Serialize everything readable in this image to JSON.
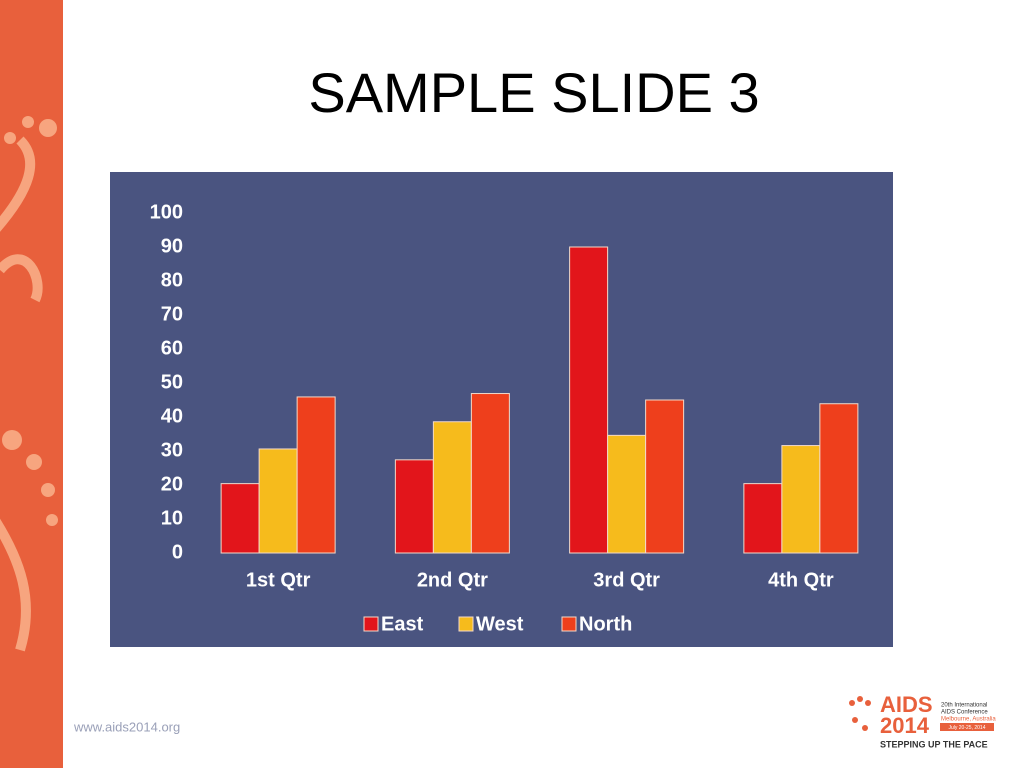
{
  "slide": {
    "title": "SAMPLE SLIDE 3",
    "footer": "www.aids2014.org",
    "logo": {
      "name": "AIDS",
      "year": "2014",
      "line1": "20th International",
      "line2": "AIDS Conference",
      "line3": "Melbourne, Australia",
      "dates": "July 20-25, 2014",
      "tagline": "STEPPING UP THE PACE"
    }
  },
  "chart_data": {
    "type": "bar",
    "categories": [
      "1st Qtr",
      "2nd Qtr",
      "3rd Qtr",
      "4th Qtr"
    ],
    "series": [
      {
        "name": "East",
        "color": "#e2151b",
        "values": [
          20.4,
          27.4,
          90,
          20.4
        ]
      },
      {
        "name": "West",
        "color": "#f6bb1c",
        "values": [
          30.6,
          38.6,
          34.6,
          31.6
        ]
      },
      {
        "name": "North",
        "color": "#ee3f1c",
        "values": [
          45.9,
          46.9,
          45,
          43.9
        ]
      }
    ],
    "ylim": [
      0,
      100
    ],
    "yticks": [
      0,
      10,
      20,
      30,
      40,
      50,
      60,
      70,
      80,
      90,
      100
    ],
    "grid": false,
    "legend": "bottom",
    "background": "#4a5480"
  }
}
